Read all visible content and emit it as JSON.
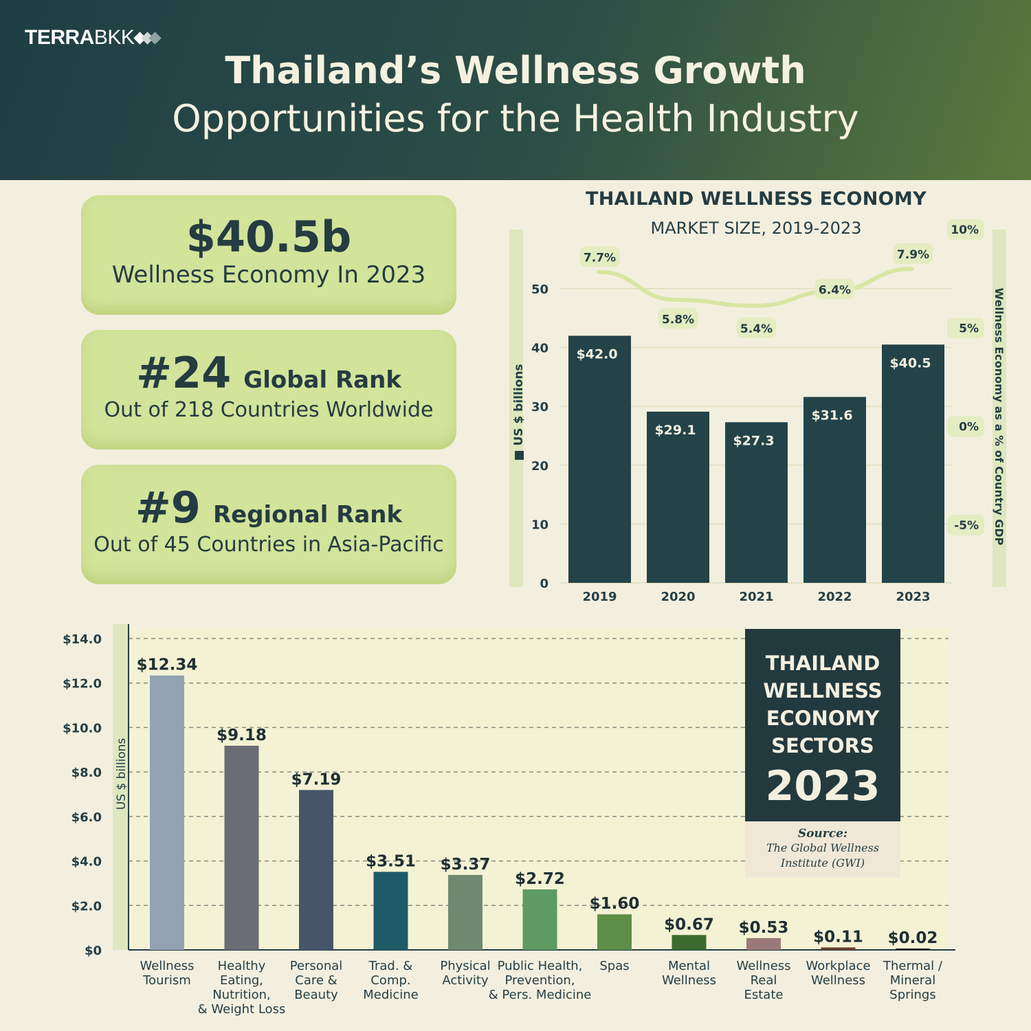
{
  "brand": {
    "bold": "TERRA",
    "light": "BKK"
  },
  "title": {
    "line1": "Thailand’s Wellness Growth",
    "line2": "Opportunities for the Health Industry"
  },
  "stats": {
    "economy": {
      "value": "$40.5b",
      "label": "Wellness Economy In 2023"
    },
    "global": {
      "rank": "#24",
      "label": "Global Rank",
      "detail": "Out of 218 Countries Worldwide"
    },
    "regional": {
      "rank": "#9",
      "label": "Regional Rank",
      "detail": "Out of 45 Countries in Asia-Pacific"
    }
  },
  "colors": {
    "bar_dark": "#234349",
    "lime": "#d2e39a",
    "line_lime": "#d7e6a1",
    "sector_bars": [
      "#93a2b2",
      "#6b6d74",
      "#465668",
      "#1f5a67",
      "#6f8a70",
      "#5d9b62",
      "#5e8f49",
      "#3c6b2f",
      "#9a7a78",
      "#6b3c2c",
      "#1a1a1a"
    ]
  },
  "chart_data": [
    {
      "type": "bar",
      "title": "THAILAND WELLNESS ECONOMY",
      "subtitle": "MARKET SIZE, 2019-2023",
      "ylabel": "US $ billions",
      "ylabel2": "Wellness Economy as a % of Country GDP",
      "ylim": [
        0,
        50
      ],
      "yticks": [
        "0",
        "10",
        "20",
        "30",
        "40",
        "50"
      ],
      "y2ticks": [
        "10%",
        "5%",
        "0%",
        "-5%"
      ],
      "y2lim": [
        -10,
        10
      ],
      "categories": [
        "2019",
        "2020",
        "2021",
        "2022",
        "2023"
      ],
      "values": [
        42.0,
        29.1,
        27.3,
        31.6,
        40.5
      ],
      "value_labels": [
        "$42.0",
        "$29.1",
        "$27.3",
        "$31.6",
        "$40.5"
      ],
      "series2": {
        "type": "line",
        "values": [
          7.7,
          5.8,
          5.4,
          6.4,
          7.9
        ],
        "labels": [
          "7.7%",
          "5.8%",
          "5.4%",
          "6.4%",
          "7.9%"
        ]
      }
    },
    {
      "type": "bar",
      "title": "THAILAND WELLNESS ECONOMY SECTORS",
      "year": "2023",
      "source_heading": "Source:",
      "source": "The Global Wellness Institute (GWI)",
      "ylabel": "US $ billions",
      "ylim": [
        0,
        14
      ],
      "yticks": [
        "$0",
        "$2.0",
        "$4.0",
        "$6.0",
        "$8.0",
        "$10.0",
        "$12.0",
        "$14.0"
      ],
      "categories": [
        [
          "Wellness",
          "Tourism"
        ],
        [
          "Healthy",
          "Eating,",
          "Nutrition,",
          "& Weight Loss"
        ],
        [
          "Personal",
          "Care &",
          "Beauty"
        ],
        [
          "Trad. &",
          "Comp.",
          "Medicine"
        ],
        [
          "Physical",
          "Activity"
        ],
        [
          "Public Health,",
          "Prevention,",
          "& Pers. Medicine"
        ],
        [
          "Spas"
        ],
        [
          "Mental",
          "Wellness"
        ],
        [
          "Wellness",
          "Real",
          "Estate"
        ],
        [
          "Workplace",
          "Wellness"
        ],
        [
          "Thermal /",
          "Mineral",
          "Springs"
        ]
      ],
      "values": [
        12.34,
        9.18,
        7.19,
        3.51,
        3.37,
        2.72,
        1.6,
        0.67,
        0.53,
        0.11,
        0.02
      ],
      "value_labels": [
        "$12.34",
        "$9.18",
        "$7.19",
        "$3.51",
        "$3.37",
        "$2.72",
        "$1.60",
        "$0.67",
        "$0.53",
        "$0.11",
        "$0.02"
      ]
    }
  ]
}
